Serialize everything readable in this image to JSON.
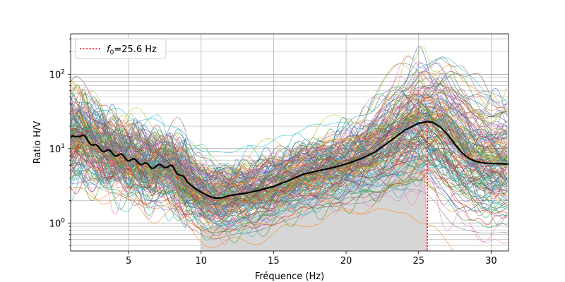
{
  "chart_data": {
    "type": "line",
    "xlabel": "Fréquence (Hz)",
    "ylabel": "Ratio H/V",
    "xlim": [
      1,
      31.2
    ],
    "ylim": [
      0.42,
      350
    ],
    "yscale": "log",
    "grid": true,
    "xticks": [
      5,
      10,
      15,
      20,
      25,
      30
    ],
    "xtick_labels": [
      "5",
      "10",
      "15",
      "20",
      "25",
      "30"
    ],
    "yticks_major": [
      1,
      10,
      100
    ],
    "ytick_labels": [
      {
        "base": "10",
        "exp": "0"
      },
      {
        "base": "10",
        "exp": "1"
      },
      {
        "base": "10",
        "exp": "2"
      }
    ],
    "legend": {
      "placement": "upper-left",
      "label_prefix": "f",
      "label_sub": "0",
      "label_suffix": "=25.6 Hz"
    },
    "peak_frequency": 25.6,
    "peak_line_color": "#ff0000",
    "median_color": "#000000",
    "median_curve": {
      "x": [
        1.0,
        1.5,
        2.0,
        2.5,
        3.0,
        3.5,
        4.0,
        4.5,
        5.0,
        5.5,
        6.0,
        6.5,
        7.0,
        7.5,
        8.0,
        8.5,
        9.0,
        9.5,
        10.0,
        10.5,
        11.0,
        11.5,
        12.0,
        13.0,
        14.0,
        15.0,
        16.0,
        17.0,
        18.0,
        19.0,
        20.0,
        21.0,
        22.0,
        23.0,
        24.0,
        25.0,
        25.6,
        26.0,
        26.5,
        27.0,
        27.5,
        28.0,
        28.5,
        29.0,
        29.5,
        30.0,
        31.2
      ],
      "y": [
        13.5,
        15.5,
        14.0,
        11.5,
        10.0,
        9.3,
        8.5,
        8.0,
        7.2,
        6.8,
        6.3,
        5.7,
        5.8,
        5.9,
        5.6,
        4.6,
        3.6,
        3.0,
        2.6,
        2.3,
        2.15,
        2.2,
        2.35,
        2.5,
        2.75,
        3.1,
        3.7,
        4.5,
        5.0,
        5.5,
        6.2,
        7.3,
        9.0,
        12.5,
        17.5,
        22.0,
        23.0,
        22.5,
        19.5,
        15.5,
        11.5,
        8.8,
        7.3,
        6.7,
        6.4,
        6.3,
        6.2
      ]
    },
    "shaded_region": {
      "x": [
        10.0,
        10.5,
        11.0,
        11.5,
        12.0,
        13.0,
        14.0,
        15.0,
        16.0,
        17.0,
        18.0,
        19.0,
        20.0,
        21.0,
        22.0,
        23.0,
        24.0,
        25.0,
        25.4,
        25.6,
        25.8,
        26.0,
        27.0,
        28.0,
        29.0,
        30.0,
        31.2
      ],
      "y": [
        0.9,
        0.85,
        0.9,
        1.0,
        1.1,
        1.25,
        1.4,
        1.6,
        1.9,
        2.2,
        2.5,
        2.9,
        3.3,
        3.9,
        4.8,
        6.2,
        7.5,
        8.0,
        6.0,
        0.42,
        0.42,
        0.42,
        0.42,
        0.42,
        0.42,
        0.42,
        0.42
      ]
    },
    "individual_curves": {
      "count": 180,
      "line_width": 0.6,
      "palette": [
        "#1f77b4",
        "#ff7f0e",
        "#2ca02c",
        "#d62728",
        "#9467bd",
        "#8c564b",
        "#e377c2",
        "#7f7f7f",
        "#bcbd22",
        "#17becf"
      ]
    }
  }
}
